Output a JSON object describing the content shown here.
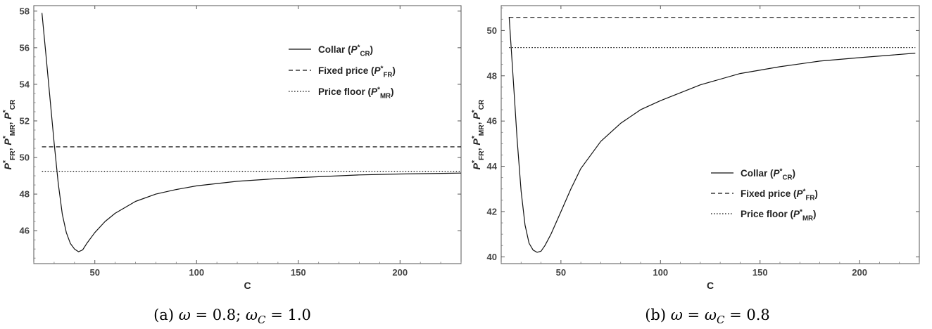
{
  "chart_data": [
    {
      "type": "line",
      "caption": "(a) ω = 0.8; ω_C = 1.0",
      "xlabel": "C",
      "ylabel": "P*FR, P*MR, P*CR",
      "xlim": [
        20,
        230
      ],
      "ylim": [
        44.2,
        58.3
      ],
      "xticks": [
        50,
        100,
        150,
        200
      ],
      "yticks": [
        46,
        48,
        50,
        52,
        54,
        56,
        58
      ],
      "legend_position": "top-right",
      "series": [
        {
          "name": "Collar (P*CR)",
          "style": "solid",
          "x": [
            24,
            26,
            28,
            30,
            32,
            34,
            36,
            38,
            40,
            42,
            44,
            46,
            50,
            55,
            60,
            70,
            80,
            90,
            100,
            120,
            140,
            160,
            180,
            200,
            230
          ],
          "y": [
            57.9,
            55.6,
            53.2,
            50.8,
            48.6,
            46.9,
            45.9,
            45.3,
            45.0,
            44.85,
            44.95,
            45.3,
            45.9,
            46.5,
            46.95,
            47.6,
            48.0,
            48.25,
            48.45,
            48.7,
            48.85,
            48.95,
            49.05,
            49.1,
            49.15
          ]
        },
        {
          "name": "Fixed price (P*FR)",
          "style": "dashed",
          "x": [
            24,
            230
          ],
          "y": [
            50.58,
            50.58
          ]
        },
        {
          "name": "Price floor (P*MR)",
          "style": "dotted",
          "x": [
            24,
            230
          ],
          "y": [
            49.25,
            49.25
          ]
        }
      ]
    },
    {
      "type": "line",
      "caption": "(b) ω = ω_C = 0.8",
      "xlabel": "C",
      "ylabel": "P*FR, P*MR, P*CR",
      "xlim": [
        20,
        230
      ],
      "ylim": [
        39.7,
        51.1
      ],
      "xticks": [
        50,
        100,
        150,
        200
      ],
      "yticks": [
        40,
        42,
        44,
        46,
        48,
        50
      ],
      "legend_position": "bottom-right",
      "series": [
        {
          "name": "Collar (P*CR)",
          "style": "solid",
          "x": [
            24,
            26,
            28,
            30,
            32,
            34,
            36,
            38,
            40,
            42,
            45,
            50,
            55,
            60,
            70,
            80,
            90,
            100,
            120,
            140,
            160,
            180,
            200,
            228
          ],
          "y": [
            50.6,
            47.9,
            45.2,
            42.9,
            41.4,
            40.6,
            40.3,
            40.2,
            40.25,
            40.5,
            41.0,
            42.0,
            43.0,
            43.9,
            45.1,
            45.9,
            46.5,
            46.9,
            47.6,
            48.1,
            48.4,
            48.65,
            48.8,
            49.0
          ]
        },
        {
          "name": "Fixed price (P*FR)",
          "style": "dashed",
          "x": [
            24,
            228
          ],
          "y": [
            50.58,
            50.58
          ]
        },
        {
          "name": "Price floor (P*MR)",
          "style": "dotted",
          "x": [
            24,
            228
          ],
          "y": [
            49.25,
            49.25
          ]
        }
      ]
    }
  ]
}
